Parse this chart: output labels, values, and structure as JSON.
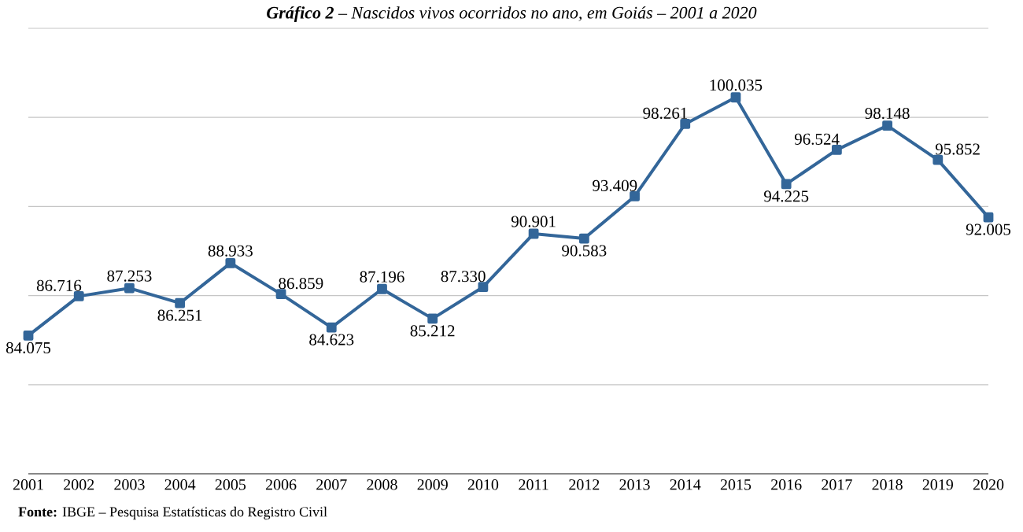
{
  "chart_data": {
    "type": "line",
    "title": "**Gráfico 2** – Nascidos vivos ocorridos no ano, em Goiás – 2001 a 2020",
    "categories": [
      "2001",
      "2002",
      "2003",
      "2004",
      "2005",
      "2006",
      "2007",
      "2008",
      "2009",
      "2010",
      "2011",
      "2012",
      "2013",
      "2014",
      "2015",
      "2016",
      "2017",
      "2018",
      "2019",
      "2020"
    ],
    "values": [
      84075,
      86716,
      87253,
      86251,
      88933,
      86859,
      84623,
      87196,
      85212,
      87330,
      90901,
      90583,
      93409,
      98261,
      100035,
      94225,
      96524,
      98148,
      95852,
      92005
    ],
    "value_labels": [
      "84.075",
      "86.716",
      "87.253",
      "86.251",
      "88.933",
      "86.859",
      "84.623",
      "87.196",
      "85.212",
      "87.330",
      "90.901",
      "90.583",
      "93.409",
      "98.261",
      "100.035",
      "94.225",
      "96.524",
      "98.148",
      "95.852",
      "92.005"
    ],
    "color": "#336699",
    "marker": "square",
    "line_style": "solid",
    "grid": "y",
    "annotations": [
      "**Fonte:** IBGE – Pesquisa Estatísticas do Registro Civil"
    ]
  }
}
